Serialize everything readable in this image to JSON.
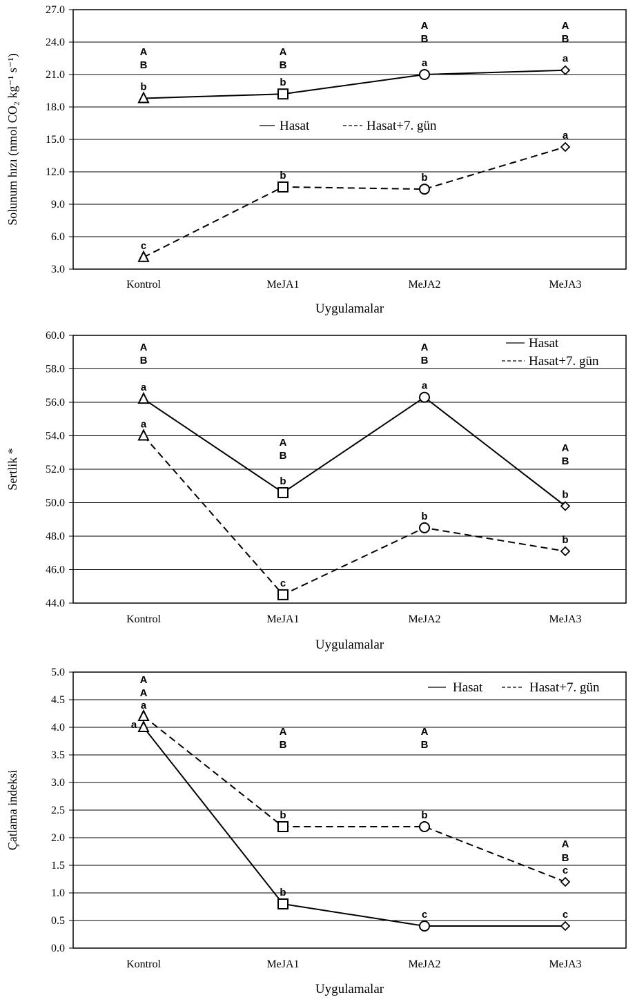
{
  "chart_data": [
    {
      "type": "line",
      "ylabel": "Solunum hızı (nmol CO₂ kg⁻¹ s⁻¹)",
      "xlabel": "Uygulamalar",
      "categories": [
        "Kontrol",
        "MeJA1",
        "MeJA2",
        "MeJA3"
      ],
      "ylim": [
        3.0,
        27.0
      ],
      "yticks": [
        "3.0",
        "6.0",
        "9.0",
        "12.0",
        "15.0",
        "18.0",
        "21.0",
        "24.0",
        "27.0"
      ],
      "grid": true,
      "legend": {
        "placement": "center",
        "layout": "horizontal"
      },
      "series": [
        {
          "name": "Hasat",
          "style": "solid",
          "values": [
            18.8,
            19.2,
            21.0,
            21.4
          ],
          "letters": [
            "b",
            "b",
            "a",
            "a"
          ]
        },
        {
          "name": "Hasat+7. gün",
          "style": "dashed",
          "values": [
            4.1,
            10.6,
            10.4,
            14.3
          ],
          "letters": [
            "c",
            "b",
            "b",
            "a"
          ]
        }
      ],
      "markers": [
        "triangle",
        "square",
        "circle",
        "diamond"
      ],
      "group_letters": [
        [
          "A",
          "B"
        ],
        [
          "A",
          "B"
        ],
        [
          "A",
          "B"
        ],
        [
          "A",
          "B"
        ]
      ]
    },
    {
      "type": "line",
      "ylabel": "Sertlik *",
      "xlabel": "Uygulamalar",
      "categories": [
        "Kontrol",
        "MeJA1",
        "MeJA2",
        "MeJA3"
      ],
      "ylim": [
        44.0,
        60.0
      ],
      "yticks": [
        "44.0",
        "46.0",
        "48.0",
        "50.0",
        "52.0",
        "54.0",
        "56.0",
        "58.0",
        "60.0"
      ],
      "grid": true,
      "legend": {
        "placement": "top-right",
        "layout": "vertical"
      },
      "series": [
        {
          "name": "Hasat",
          "style": "solid",
          "values": [
            56.2,
            50.6,
            56.3,
            49.8
          ],
          "letters": [
            "a",
            "b",
            "a",
            "b"
          ]
        },
        {
          "name": "Hasat+7. gün",
          "style": "dashed",
          "values": [
            54.0,
            44.5,
            48.5,
            47.1
          ],
          "letters": [
            "a",
            "c",
            "b",
            "b"
          ]
        }
      ],
      "markers": [
        "triangle",
        "square",
        "circle",
        "diamond"
      ],
      "group_letters": [
        [
          "A",
          "B"
        ],
        [
          "A",
          "B"
        ],
        [
          "A",
          "B"
        ],
        [
          "A",
          "B"
        ]
      ]
    },
    {
      "type": "line",
      "ylabel": "Çatlama indeksi",
      "xlabel": "Uygulamalar",
      "categories": [
        "Kontrol",
        "MeJA1",
        "MeJA2",
        "MeJA3"
      ],
      "ylim": [
        0.0,
        5.0
      ],
      "yticks": [
        "0.0",
        "0.5",
        "1.0",
        "1.5",
        "2.0",
        "2.5",
        "3.0",
        "3.5",
        "4.0",
        "4.5",
        "5.0"
      ],
      "grid": true,
      "legend": {
        "placement": "top-right",
        "layout": "horizontal"
      },
      "series": [
        {
          "name": "Hasat",
          "style": "solid",
          "values": [
            4.0,
            0.8,
            0.4,
            0.4
          ],
          "letters": [
            "a",
            "b",
            "c",
            "c"
          ]
        },
        {
          "name": "Hasat+7. gün",
          "style": "dashed",
          "values": [
            4.2,
            2.2,
            2.2,
            1.2
          ],
          "letters": [
            "a",
            "b",
            "b",
            "c"
          ]
        }
      ],
      "markers": [
        "triangle",
        "square",
        "circle",
        "diamond"
      ],
      "group_letters": [
        [
          "A",
          "A"
        ],
        [
          "A",
          "B"
        ],
        [
          "A",
          "B"
        ],
        [
          "A",
          "B"
        ]
      ]
    }
  ]
}
